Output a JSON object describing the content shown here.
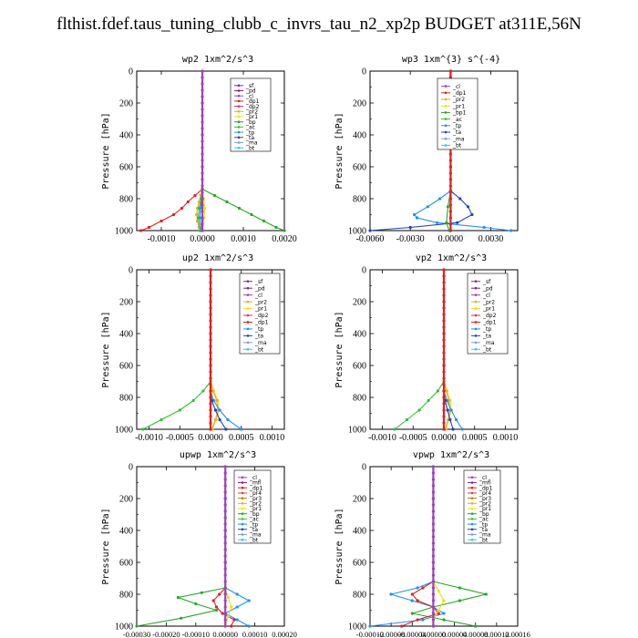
{
  "title": "flthist.fdef.taus_tuning_clubb_c_invrs_tau_n2_xp2p  BUDGET at311E,56N",
  "colors": {
    "sf": "#7b2fa0",
    "pd": "#8b1f6b",
    "cl": "#a040c0",
    "dp1": "#e02020",
    "dp2": "#d03060",
    "pr1": "#f0e000",
    "pr2": "#f5a623",
    "pr3": "#c08000",
    "pr4": "#e04040",
    "bp": "#22aa22",
    "ac": "#33c033",
    "tp": "#1e90ff",
    "ta": "#2040c0",
    "ma": "#7fa0d0",
    "bt": "#20d0e0",
    "mfl": "#902090"
  },
  "chart_data": [
    {
      "type": "line",
      "title": "wp2  1xm^2/s^3",
      "ylabel": "Pressure [hPa]",
      "xlim": [
        -0.0016,
        0.002
      ],
      "ylim": [
        1000,
        0
      ],
      "xticks": [
        "-0.0010",
        "0.0000",
        "0.0010",
        "0.0020"
      ],
      "xtick_values": [
        -0.001,
        0,
        0.001,
        0.002
      ],
      "yticks": [
        0,
        200,
        400,
        600,
        800,
        1000
      ],
      "legend": [
        "_sf",
        "_pd",
        "_cl",
        "_dp1",
        "_dp2",
        "_pr2",
        "_pr1",
        "_bp",
        "_ac",
        "_tp",
        "_ta",
        "_ma",
        "_bt"
      ],
      "legend_placement": "top-right",
      "series": [
        {
          "name": "_bp",
          "color_key": "bp",
          "y": [
            740,
            780,
            820,
            860,
            900,
            940,
            980,
            1000
          ],
          "x": [
            0.0,
            0.0003,
            0.0006,
            0.0009,
            0.0012,
            0.0015,
            0.0018,
            0.002
          ]
        },
        {
          "name": "_dp1",
          "color_key": "dp1",
          "y": [
            740,
            780,
            820,
            860,
            900,
            940,
            980,
            1000
          ],
          "x": [
            0.0,
            -0.00018,
            -0.00035,
            -0.0005,
            -0.0007,
            -0.001,
            -0.0013,
            -0.0015
          ]
        },
        {
          "name": "_pr2",
          "color_key": "pr2",
          "y": [
            740,
            780,
            820,
            860,
            900,
            940,
            980,
            1000
          ],
          "x": [
            0.0,
            -4e-05,
            -8e-05,
            -0.00012,
            -0.00014,
            -0.00012,
            -8e-05,
            -4e-05
          ]
        },
        {
          "name": "_pr1",
          "color_key": "pr1",
          "y": [
            740,
            800,
            860,
            920,
            1000
          ],
          "x": [
            0.0,
            3e-05,
            6e-05,
            4e-05,
            0.0
          ]
        },
        {
          "name": "_tp",
          "color_key": "tp",
          "y": [
            740,
            800,
            860,
            920,
            1000
          ],
          "x": [
            0.0,
            -2e-05,
            -5e-05,
            -6e-05,
            -3e-05
          ]
        },
        {
          "name": "_ac",
          "color_key": "ac",
          "y": [
            740,
            800,
            860,
            920,
            1000
          ],
          "x": [
            0.0,
            -3e-05,
            -8e-05,
            -0.0001,
            -6e-05
          ]
        },
        {
          "name": "_cl",
          "color_key": "cl",
          "y": [
            0,
            200,
            400,
            600,
            800,
            1000
          ],
          "x": [
            0,
            0,
            0,
            0,
            0,
            0
          ]
        }
      ]
    },
    {
      "type": "line",
      "title": "wp3  1xm^{3} s^{-4}",
      "ylabel": "Pressure [hPa]",
      "xlim": [
        -0.006,
        0.005
      ],
      "ylim": [
        1000,
        0
      ],
      "xticks": [
        "-0.0060",
        "-0.0030",
        "0.0000",
        "0.0030"
      ],
      "xtick_values": [
        -0.006,
        -0.003,
        0,
        0.003
      ],
      "yticks": [
        0,
        200,
        400,
        600,
        800,
        1000
      ],
      "legend": [
        "_cl",
        "_dp1",
        "_pr2",
        "_pr1",
        "_bp1",
        "_ac",
        "_tp",
        "_ta",
        "_ma",
        "_bt"
      ],
      "legend_placement": "top-right",
      "series": [
        {
          "name": "_tp",
          "color_key": "tp",
          "y": [
            750,
            800,
            850,
            900,
            920,
            950,
            980,
            1000
          ],
          "x": [
            0.0,
            -0.0008,
            -0.0017,
            -0.0027,
            -0.0025,
            -0.001,
            0.0025,
            0.0045
          ]
        },
        {
          "name": "_ta",
          "color_key": "ta",
          "y": [
            750,
            800,
            850,
            900,
            950,
            980,
            1000
          ],
          "x": [
            0.0,
            0.0007,
            0.0013,
            0.0016,
            0.0005,
            -0.003,
            -0.006
          ]
        },
        {
          "name": "_bp1",
          "color_key": "bp",
          "y": [
            750,
            850,
            950,
            1000
          ],
          "x": [
            0.0,
            -0.0002,
            -0.0003,
            -0.0001
          ]
        },
        {
          "name": "_dp1",
          "color_key": "dp1",
          "y": [
            0,
            200,
            400,
            600,
            800,
            1000
          ],
          "x": [
            0,
            0,
            0,
            0,
            0,
            0
          ]
        }
      ]
    },
    {
      "type": "line",
      "title": "up2  1xm^2/s^3",
      "ylabel": "Pressure [hPa]",
      "xlim": [
        -0.0012,
        0.0012
      ],
      "ylim": [
        1000,
        0
      ],
      "xticks": [
        "-0.0010",
        "-0.0005",
        "0.0000",
        "0.0005",
        "0.0010"
      ],
      "xtick_values": [
        -0.001,
        -0.0005,
        0,
        0.0005,
        0.001
      ],
      "yticks": [
        0,
        200,
        400,
        600,
        800,
        1000
      ],
      "legend": [
        "_sf",
        "_pd",
        "_cl",
        "_pr2",
        "_pr1",
        "_dp2",
        "_dp1",
        "_tp",
        "_ta",
        "_ma",
        "_bt"
      ],
      "legend_placement": "top-right",
      "series": [
        {
          "name": "_dp1",
          "color_key": "ac",
          "y": [
            700,
            760,
            820,
            880,
            940,
            1000
          ],
          "x": [
            0.0,
            -0.00012,
            -0.00028,
            -0.0005,
            -0.0008,
            -0.0011
          ]
        },
        {
          "name": "_pr1",
          "color_key": "pr1",
          "y": [
            700,
            760,
            820,
            880,
            940,
            1000
          ],
          "x": [
            0.0,
            5e-05,
            0.00012,
            0.00014,
            9e-05,
            3e-05
          ]
        },
        {
          "name": "_pr2",
          "color_key": "pr2",
          "y": [
            700,
            760,
            820,
            880,
            940,
            1000
          ],
          "x": [
            0.0,
            4e-05,
            0.0001,
            0.00012,
            8e-05,
            2e-05
          ]
        },
        {
          "name": "_tp",
          "color_key": "tp",
          "y": [
            760,
            820,
            880,
            940,
            1000
          ],
          "x": [
            0.0,
            5e-05,
            0.00015,
            0.00028,
            0.0005
          ]
        },
        {
          "name": "_ta",
          "color_key": "ta",
          "y": [
            760,
            820,
            880,
            940,
            1000
          ],
          "x": [
            0.0,
            2e-05,
            8e-05,
            0.00015,
            0.00025
          ]
        },
        {
          "name": "_sf",
          "color_key": "dp1",
          "y": [
            0,
            200,
            400,
            600,
            800,
            1000
          ],
          "x": [
            0,
            0,
            0,
            0,
            0,
            0
          ]
        }
      ]
    },
    {
      "type": "line",
      "title": "vp2  1xm^2/s^3",
      "ylabel": "Pressure [hPa]",
      "xlim": [
        -0.0012,
        0.0012
      ],
      "ylim": [
        1000,
        0
      ],
      "xticks": [
        "-0.0010",
        "-0.0005",
        "0.0000",
        "0.0005",
        "0.0010"
      ],
      "xtick_values": [
        -0.001,
        -0.0005,
        0,
        0.0005,
        0.001
      ],
      "yticks": [
        0,
        200,
        400,
        600,
        800,
        1000
      ],
      "legend": [
        "_sf",
        "_pd",
        "_cl",
        "_pr2",
        "_pr1",
        "_dp2",
        "_dp1",
        "_tp",
        "_ta",
        "_ma",
        "_bt"
      ],
      "legend_placement": "top-right",
      "series": [
        {
          "name": "_dp1",
          "color_key": "ac",
          "y": [
            700,
            760,
            820,
            880,
            940,
            1000
          ],
          "x": [
            0.0,
            -0.0001,
            -0.00025,
            -0.0004,
            -0.0006,
            -0.0008
          ]
        },
        {
          "name": "_pr1",
          "color_key": "pr1",
          "y": [
            700,
            760,
            820,
            880,
            940,
            1000
          ],
          "x": [
            0.0,
            5e-05,
            0.0001,
            0.00012,
            8e-05,
            3e-05
          ]
        },
        {
          "name": "_pr2",
          "color_key": "pr2",
          "y": [
            700,
            760,
            820,
            880,
            940,
            1000
          ],
          "x": [
            0.0,
            4e-05,
            8e-05,
            0.0001,
            7e-05,
            2e-05
          ]
        },
        {
          "name": "_tp",
          "color_key": "tp",
          "y": [
            760,
            820,
            880,
            940,
            1000
          ],
          "x": [
            0.0,
            5e-05,
            0.00012,
            0.0002,
            0.0003
          ]
        },
        {
          "name": "_ta",
          "color_key": "ta",
          "y": [
            760,
            820,
            880,
            940,
            1000
          ],
          "x": [
            0.0,
            2e-05,
            6e-05,
            0.0001,
            0.00015
          ]
        },
        {
          "name": "_sf",
          "color_key": "dp1",
          "y": [
            0,
            200,
            400,
            600,
            800,
            1000
          ],
          "x": [
            0,
            0,
            0,
            0,
            0,
            0
          ]
        }
      ]
    },
    {
      "type": "line",
      "title": "upwp  1xm^2/s^3",
      "ylabel": "Pressure [hPa]",
      "xlim": [
        -0.0003,
        0.0002
      ],
      "ylim": [
        1000,
        0
      ],
      "xticks": [
        "-0.00030",
        "-0.00020",
        "-0.00010",
        "0.00000",
        "0.00010",
        "0.00020"
      ],
      "xtick_values": [
        -0.0003,
        -0.0002,
        -0.0001,
        0,
        0.0001,
        0.0002
      ],
      "yticks": [
        0,
        200,
        400,
        600,
        800,
        1000
      ],
      "legend": [
        "_cl",
        "_mfl",
        "_dp1",
        "_pr4",
        "_pr3",
        "_pr2",
        "_pr1",
        "_bp",
        "_ac",
        "_tp",
        "_ta",
        "_ma",
        "_bt"
      ],
      "legend_placement": "top-right",
      "series": [
        {
          "name": "_bp",
          "color_key": "bp",
          "y": [
            760,
            790,
            820,
            860,
            900,
            950,
            1000
          ],
          "x": [
            0.0,
            -8e-05,
            -0.00016,
            -0.0001,
            -3e-05,
            -0.00015,
            -0.0003
          ]
        },
        {
          "name": "_tp",
          "color_key": "tp",
          "y": [
            760,
            800,
            840,
            880,
            920,
            960,
            1000
          ],
          "x": [
            0.0,
            4e-05,
            8e-05,
            4e-05,
            0.0,
            4e-05,
            8e-05
          ]
        },
        {
          "name": "_dp1",
          "color_key": "dp1",
          "y": [
            760,
            800,
            840,
            880,
            920,
            960,
            1000
          ],
          "x": [
            0.0,
            -2e-05,
            -4e-05,
            -3e-05,
            -1e-05,
            3e-05,
            2e-05
          ]
        },
        {
          "name": "_pr1",
          "color_key": "pr1",
          "y": [
            760,
            820,
            880,
            940,
            1000
          ],
          "x": [
            0.0,
            1e-05,
            2e-05,
            1e-05,
            0.0
          ]
        },
        {
          "name": "_cl",
          "color_key": "cl",
          "y": [
            0,
            200,
            400,
            600,
            800,
            1000
          ],
          "x": [
            0,
            0,
            0,
            0,
            0,
            0
          ]
        }
      ]
    },
    {
      "type": "line",
      "title": "vpwp  1xm^2/s^3",
      "ylabel": "Pressure [hPa]",
      "xlim": [
        -0.00012,
        0.00016
      ],
      "ylim": [
        1000,
        0
      ],
      "xticks": [
        "-0.00012",
        "-0.00008",
        "-0.00004",
        "0.00000",
        "0.00004",
        "0.00008",
        "0.00012",
        "0.00016"
      ],
      "xtick_values": [
        -0.00012,
        -8e-05,
        -4e-05,
        0,
        4e-05,
        8e-05,
        0.00012,
        0.00016
      ],
      "yticks": [
        0,
        200,
        400,
        600,
        800,
        1000
      ],
      "legend": [
        "_cl",
        "_mfl",
        "_dp1",
        "_pr4",
        "_pr3",
        "_pr2",
        "_pr1",
        "_bp",
        "_ac",
        "_tp",
        "_ta",
        "_ma",
        "_bt"
      ],
      "legend_placement": "top-right",
      "series": [
        {
          "name": "_bp",
          "color_key": "bp",
          "y": [
            720,
            760,
            800,
            840,
            880,
            920,
            960,
            1000
          ],
          "x": [
            0.0,
            5e-05,
            0.0001,
            5e-05,
            0.0,
            -4e-05,
            2e-05,
            8e-05
          ]
        },
        {
          "name": "_tp",
          "color_key": "tp",
          "y": [
            720,
            760,
            800,
            840,
            880,
            920,
            960,
            1000
          ],
          "x": [
            0.0,
            -3e-05,
            -8e-05,
            -4e-05,
            0.0,
            2e-05,
            -2e-05,
            -0.00012
          ]
        },
        {
          "name": "_dp1",
          "color_key": "dp1",
          "y": [
            720,
            760,
            800,
            840,
            880,
            920,
            960,
            1000
          ],
          "x": [
            0.0,
            -2e-05,
            -4e-05,
            -3e-05,
            0.0,
            1e-05,
            -3e-05,
            -6e-05
          ]
        },
        {
          "name": "_pr1",
          "color_key": "pr1",
          "y": [
            720,
            780,
            840,
            900,
            960,
            1000
          ],
          "x": [
            0.0,
            1e-05,
            2e-05,
            1e-05,
            0.0,
            0.0
          ]
        },
        {
          "name": "_cl",
          "color_key": "cl",
          "y": [
            0,
            200,
            400,
            600,
            800,
            1000
          ],
          "x": [
            0,
            0,
            0,
            0,
            0,
            0
          ]
        }
      ]
    }
  ]
}
